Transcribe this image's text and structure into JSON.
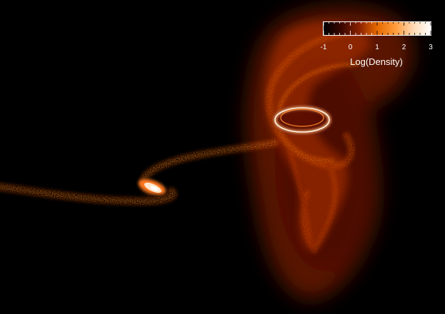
{
  "colorbar": {
    "title": "Log(Density)",
    "tick_labels": [
      "-1",
      "0",
      "1",
      "2",
      "3"
    ],
    "range": [
      -1,
      3
    ],
    "colors": [
      "#000000",
      "#3a0700",
      "#8a2100",
      "#e66a00",
      "#ff9a3a",
      "#ffd8b0",
      "#ffffff"
    ]
  }
}
